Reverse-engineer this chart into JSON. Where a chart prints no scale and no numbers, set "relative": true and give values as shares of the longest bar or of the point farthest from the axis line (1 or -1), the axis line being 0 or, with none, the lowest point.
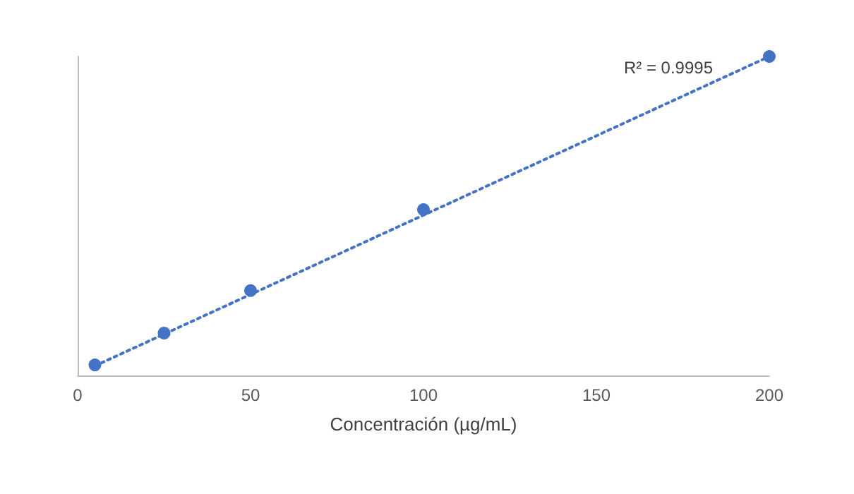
{
  "chart_data": {
    "type": "scatter",
    "xlabel": "Concentración (µg/mL)",
    "relative": true,
    "xlim": [
      0,
      200
    ],
    "xticks": [
      0,
      50,
      100,
      150,
      200
    ],
    "grid": false,
    "marker": "circle",
    "annotations": [
      "R² = 0.9995"
    ],
    "series": [
      {
        "color": "#4472c4",
        "x": [
          5,
          25,
          50,
          100,
          200
        ],
        "values": [
          0.033,
          0.133,
          0.266,
          0.52,
          1
        ]
      },
      {
        "type": "line",
        "color": "#4472c4",
        "x": [
          5,
          200
        ],
        "values": [
          0.03,
          1
        ],
        "marker": "none",
        "line_style": "dotted"
      }
    ]
  }
}
